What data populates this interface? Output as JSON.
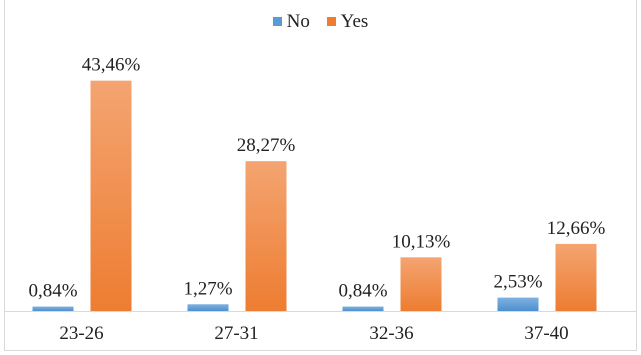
{
  "chart_data": {
    "type": "bar",
    "title": "",
    "xlabel": "",
    "ylabel": "",
    "categories": [
      "23-26",
      "27-31",
      "32-36",
      "37-40"
    ],
    "series": [
      {
        "name": "No",
        "color": "#5b9bd5",
        "values": [
          0.84,
          1.27,
          0.84,
          2.53
        ],
        "labels": [
          "0,84%",
          "1,27%",
          "0,84%",
          "2,53%"
        ]
      },
      {
        "name": "Yes",
        "color": "#ed7d31",
        "values": [
          43.46,
          28.27,
          10.13,
          12.66
        ],
        "labels": [
          "43,46%",
          "28,27%",
          "10,13%",
          "12,66%"
        ]
      }
    ],
    "ylim": [
      0,
      50
    ],
    "legend_position": "top-center",
    "grid": false
  }
}
